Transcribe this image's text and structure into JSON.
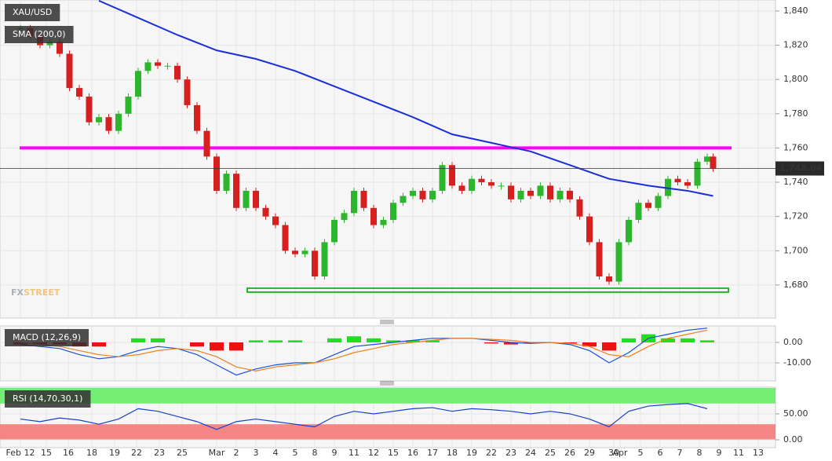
{
  "chart_data": [
    {
      "type": "candlestick",
      "title": "XAU/USD",
      "x": [
        0,
        0.5,
        1,
        1.5,
        2,
        2.5,
        3,
        3.5,
        4,
        4.5,
        5,
        5.5,
        6,
        6.5,
        7,
        7.5,
        8,
        8.5,
        9,
        9.5,
        10,
        10.5,
        11,
        11.5,
        12,
        12.5,
        13,
        13.5,
        14,
        14.5,
        15,
        15.5,
        16,
        16.5,
        17,
        17.5,
        18,
        18.5,
        19,
        19.5,
        20,
        20.5,
        21,
        21.5,
        22,
        22.5,
        23,
        23.5,
        24,
        24.5,
        25,
        25.5,
        26,
        26.5,
        27,
        27.5,
        28,
        28.5,
        29,
        29.5,
        30,
        30.5,
        31,
        31.5,
        32,
        32.5,
        33,
        33.5,
        34,
        34.5,
        35,
        35.3
      ],
      "series": [
        {
          "values": [
            1830,
            1825,
            1820,
            1822,
            1815,
            1795,
            1790,
            1775,
            1778,
            1770,
            1780,
            1790,
            1805,
            1810,
            1808,
            1808,
            1800,
            1785,
            1770,
            1755,
            1735,
            1745,
            1725,
            1735,
            1725,
            1720,
            1715,
            1700,
            1698,
            1700,
            1685,
            1705,
            1718,
            1722,
            1735,
            1725,
            1715,
            1718,
            1728,
            1732,
            1735,
            1730,
            1735,
            1750,
            1738,
            1735,
            1742,
            1740,
            1738,
            1738,
            1730,
            1735,
            1732,
            1738,
            1730,
            1735,
            1730,
            1720,
            1705,
            1685,
            1682,
            1705,
            1718,
            1728,
            1725,
            1732,
            1742,
            1740,
            1738,
            1752,
            1755,
            1748
          ],
          "up_color": "#2db52d",
          "down_color": "#d62020"
        },
        {
          "name": "SMA (200,0)",
          "color": "#1a2fd6",
          "x": [
            4,
            6,
            8,
            10,
            12,
            14,
            16,
            18,
            20,
            22,
            24,
            26,
            28,
            30,
            32,
            34,
            35.3
          ],
          "values": [
            1846,
            1836,
            1826,
            1817,
            1812,
            1805,
            1796,
            1787,
            1778,
            1768,
            1763,
            1758,
            1750,
            1742,
            1738,
            1735,
            1732
          ]
        }
      ],
      "xlim": [
        -1.04,
        38.48
      ],
      "xticks": [
        {
          "value": 0,
          "label": "Feb 12"
        },
        {
          "value": 1.32,
          "label": "15"
        },
        {
          "value": 2.44,
          "label": "16"
        },
        {
          "value": 3.64,
          "label": "18"
        },
        {
          "value": 4.8,
          "label": "19"
        },
        {
          "value": 5.92,
          "label": "22"
        },
        {
          "value": 7.08,
          "label": "23"
        },
        {
          "value": 8.24,
          "label": "25"
        },
        {
          "value": 10,
          "label": "Mar"
        },
        {
          "value": 11,
          "label": "2"
        },
        {
          "value": 12,
          "label": "3"
        },
        {
          "value": 13,
          "label": "4"
        },
        {
          "value": 14,
          "label": "5"
        },
        {
          "value": 15,
          "label": "8"
        },
        {
          "value": 16,
          "label": "9"
        },
        {
          "value": 17,
          "label": "11"
        },
        {
          "value": 18,
          "label": "12"
        },
        {
          "value": 19,
          "label": "15"
        },
        {
          "value": 20,
          "label": "16"
        },
        {
          "value": 21,
          "label": "17"
        },
        {
          "value": 22,
          "label": "18"
        },
        {
          "value": 23,
          "label": "19"
        },
        {
          "value": 24,
          "label": "22"
        },
        {
          "value": 25,
          "label": "23"
        },
        {
          "value": 26,
          "label": "24"
        },
        {
          "value": 27,
          "label": "25"
        },
        {
          "value": 28,
          "label": "26"
        },
        {
          "value": 29,
          "label": "29"
        },
        {
          "value": 30.24,
          "label": "30"
        },
        {
          "value": 30.56,
          "label": "Apr"
        },
        {
          "value": 31.6,
          "label": "5"
        },
        {
          "value": 32.6,
          "label": "6"
        },
        {
          "value": 33.6,
          "label": "7"
        },
        {
          "value": 34.6,
          "label": "8"
        },
        {
          "value": 35.6,
          "label": "9"
        },
        {
          "value": 36.6,
          "label": "11"
        },
        {
          "value": 37.6,
          "label": "13"
        }
      ],
      "ylim": [
        1660.7,
        1846.4
      ],
      "yticks": [
        {
          "value": 1680,
          "label": "1,680"
        },
        {
          "value": 1700,
          "label": "1,700"
        },
        {
          "value": 1720,
          "label": "1,720"
        },
        {
          "value": 1740,
          "label": "1,740"
        },
        {
          "value": 1760,
          "label": "1,760"
        },
        {
          "value": 1780,
          "label": "1,780"
        },
        {
          "value": 1800,
          "label": "1,800"
        },
        {
          "value": 1820,
          "label": "1,820"
        },
        {
          "value": 1840,
          "label": "1,840"
        }
      ],
      "annotations": [
        {
          "level": 1760,
          "color": "#ff00ff"
        },
        {
          "level": 1677,
          "color": "#2db52d"
        }
      ],
      "last_price": {
        "value": 1748.04,
        "label": "1,748.04"
      },
      "watermark": [
        "FX",
        "STREET"
      ]
    },
    {
      "type": "macd",
      "title": "MACD (12,26,9)",
      "x": [
        0,
        1,
        2,
        3,
        4,
        5,
        6,
        7,
        8,
        9,
        10,
        11,
        12,
        13,
        14,
        15,
        16,
        17,
        18,
        19,
        20,
        21,
        22,
        23,
        24,
        25,
        26,
        27,
        28,
        29,
        30,
        31,
        32,
        33,
        34,
        35
      ],
      "series": [
        {
          "values": [
            -1,
            -1,
            -1,
            -2,
            -2,
            0,
            2,
            2,
            0,
            -2,
            -4,
            -4,
            1,
            1,
            1,
            0,
            2,
            3,
            2,
            1,
            1,
            1,
            0,
            0,
            -0.5,
            -1,
            -0.5,
            0,
            -0.5,
            -2,
            -4,
            2,
            4,
            2,
            2,
            1
          ],
          "up_color": "#22dd22",
          "down_color": "#ee1111"
        },
        {
          "color": "#1a4fd6",
          "values": [
            -1,
            -2,
            -3,
            -6,
            -8,
            -7,
            -4,
            -2,
            -3,
            -6,
            -11,
            -16,
            -13,
            -11,
            -10,
            -10,
            -6,
            -2,
            -1,
            0,
            1,
            2,
            2,
            2,
            1,
            0,
            -0.5,
            0,
            -1,
            -4,
            -10,
            -5,
            2,
            4,
            6,
            7
          ]
        },
        {
          "color": "#f08020",
          "values": [
            0,
            -1,
            -2,
            -4,
            -6,
            -7,
            -6,
            -4,
            -3,
            -4,
            -7,
            -12,
            -14,
            -12,
            -11,
            -10,
            -8,
            -5,
            -3,
            -1,
            0,
            1,
            2,
            2,
            1.5,
            1,
            0,
            0,
            -0.5,
            -2,
            -6,
            -7,
            -2,
            2,
            4,
            6
          ]
        }
      ],
      "ylim": [
        -18.85,
        8.08
      ],
      "yticks": [
        {
          "value": 0,
          "label": "0.00"
        },
        {
          "value": -10,
          "label": "-10.00"
        }
      ]
    },
    {
      "type": "line",
      "title": "RSI (14,70,30,1)",
      "x": [
        0,
        1,
        2,
        3,
        4,
        5,
        6,
        7,
        8,
        9,
        10,
        11,
        12,
        13,
        14,
        15,
        16,
        17,
        18,
        19,
        20,
        21,
        22,
        23,
        24,
        25,
        26,
        27,
        28,
        29,
        30,
        31,
        32,
        33,
        34,
        35
      ],
      "series": [
        {
          "color": "#1a3fcc",
          "values": [
            40,
            35,
            42,
            38,
            30,
            40,
            60,
            55,
            45,
            35,
            20,
            35,
            40,
            35,
            30,
            25,
            45,
            55,
            50,
            55,
            60,
            62,
            55,
            60,
            58,
            55,
            50,
            55,
            50,
            40,
            25,
            55,
            65,
            68,
            70,
            60
          ]
        }
      ],
      "bands": [
        {
          "from": 70,
          "to": 100,
          "color": "#66ee66"
        },
        {
          "from": 0,
          "to": 30,
          "color": "#f57a7a"
        }
      ],
      "ylim": [
        -15.2,
        101.5
      ],
      "yticks": [
        {
          "value": 50,
          "label": "50.00"
        },
        {
          "value": 0,
          "label": "0.00"
        }
      ]
    }
  ]
}
